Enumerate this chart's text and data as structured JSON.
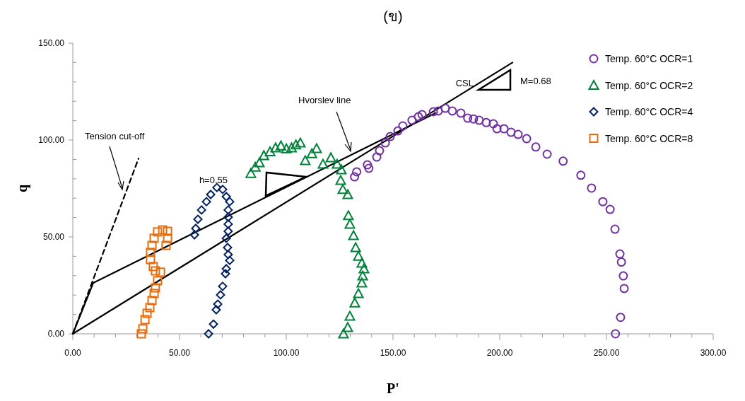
{
  "chart_data": {
    "type": "scatter",
    "title": "(ข)",
    "xlabel": "P'",
    "ylabel": "q",
    "xlim": [
      0,
      300
    ],
    "ylim": [
      0,
      150
    ],
    "xticks": [
      {
        "value": 0,
        "label": "0.00"
      },
      {
        "value": 50,
        "label": "50.00"
      },
      {
        "value": 100,
        "label": "100.00"
      },
      {
        "value": 150,
        "label": "150.00"
      },
      {
        "value": 200,
        "label": "200.00"
      },
      {
        "value": 250,
        "label": "250.00"
      },
      {
        "value": 300,
        "label": "300.00"
      },
      {
        "value": 10,
        "label": null
      },
      {
        "value": 20,
        "label": null
      },
      {
        "value": 30,
        "label": null
      },
      {
        "value": 40,
        "label": null
      },
      {
        "value": 60,
        "label": null
      },
      {
        "value": 70,
        "label": null
      },
      {
        "value": 80,
        "label": null
      },
      {
        "value": 90,
        "label": null
      },
      {
        "value": 110,
        "label": null
      },
      {
        "value": 120,
        "label": null
      },
      {
        "value": 130,
        "label": null
      },
      {
        "value": 140,
        "label": null
      },
      {
        "value": 160,
        "label": null
      },
      {
        "value": 170,
        "label": null
      },
      {
        "value": 180,
        "label": null
      },
      {
        "value": 190,
        "label": null
      },
      {
        "value": 210,
        "label": null
      },
      {
        "value": 220,
        "label": null
      },
      {
        "value": 230,
        "label": null
      },
      {
        "value": 240,
        "label": null
      },
      {
        "value": 260,
        "label": null
      },
      {
        "value": 270,
        "label": null
      },
      {
        "value": 280,
        "label": null
      },
      {
        "value": 290,
        "label": null
      }
    ],
    "yticks": [
      {
        "value": 0,
        "label": "0.00"
      },
      {
        "value": 50,
        "label": "50.00"
      },
      {
        "value": 100,
        "label": "100.00"
      },
      {
        "value": 150,
        "label": "150.00"
      },
      {
        "value": 10,
        "label": null
      },
      {
        "value": 20,
        "label": null
      },
      {
        "value": 30,
        "label": null
      },
      {
        "value": 40,
        "label": null
      },
      {
        "value": 60,
        "label": null
      },
      {
        "value": 70,
        "label": null
      },
      {
        "value": 80,
        "label": null
      },
      {
        "value": 90,
        "label": null
      },
      {
        "value": 110,
        "label": null
      },
      {
        "value": 120,
        "label": null
      },
      {
        "value": 130,
        "label": null
      },
      {
        "value": 140,
        "label": null
      }
    ],
    "grid": false,
    "legend": "top right",
    "series": [
      {
        "name": "Temp. 60°C OCR=1",
        "color": "#7030a0",
        "marker": "circle",
        "x": [
          132,
          133,
          138.7,
          138,
          142.4,
          143.7,
          146.4,
          148.7,
          152.3,
          154.6,
          158.9,
          161.9,
          163.6,
          168.9,
          171.2,
          174.5,
          177.8,
          181.8,
          185,
          187.7,
          190.4,
          193.7,
          197,
          198.7,
          202,
          205.3,
          208.6,
          212.6,
          216.9,
          222.2,
          229.7,
          238,
          243,
          248.3,
          251.7,
          254,
          256.3,
          257,
          257.9,
          258.3,
          256.6,
          254.2
        ],
        "values": [
          81,
          83.6,
          85.4,
          87.2,
          91.2,
          94.5,
          98.5,
          101.8,
          104.7,
          107.3,
          110.2,
          112,
          113.1,
          114.6,
          115,
          116.4,
          115,
          113.9,
          111.3,
          110.9,
          110.2,
          109,
          108.4,
          105.8,
          105.8,
          104,
          102.9,
          100.7,
          96.4,
          92.7,
          89.1,
          81.8,
          75.2,
          68.2,
          64.2,
          54,
          41.2,
          37,
          29.9,
          23.4,
          8.5,
          0
        ]
      },
      {
        "name": "Temp. 60°C OCR=2",
        "color": "#00823b",
        "marker": "triangle",
        "x": [
          83.4,
          85.5,
          87.4,
          89.5,
          92.4,
          95,
          97.5,
          100,
          102.5,
          104.5,
          106.6,
          108.9,
          112,
          114.2,
          117.2,
          120.9,
          123.8,
          125.8,
          125.5,
          126.5,
          128.8,
          129.1,
          129.8,
          131.5,
          132.5,
          133.8,
          135.4,
          136.4,
          135.8,
          135.4,
          133.8,
          132.1,
          129.8,
          128.8,
          126.8
        ],
        "values": [
          82.8,
          86,
          88.3,
          92,
          94,
          96,
          97,
          95.5,
          96,
          97.5,
          98.5,
          89.4,
          93,
          95.6,
          87.6,
          90.9,
          87.6,
          84.7,
          79.2,
          74.5,
          71.9,
          61,
          56.6,
          50.7,
          44.5,
          40.1,
          36.5,
          33.6,
          29.9,
          26.3,
          20.8,
          16,
          9.1,
          3.3,
          0
        ]
      },
      {
        "name": "Temp. 60°C OCR=4",
        "color": "#002060",
        "marker": "diamond",
        "x": [
          57,
          57.6,
          58.6,
          60.3,
          62.6,
          64.6,
          67.5,
          70.2,
          71.9,
          73.5,
          72.8,
          72.8,
          72.8,
          72.8,
          71.9,
          72.5,
          72.8,
          73.5,
          71.9,
          71.5,
          70.2,
          69.2,
          67.9,
          67.2,
          65.9,
          63.6
        ],
        "values": [
          51.1,
          54.4,
          59.1,
          63.9,
          68.2,
          71.9,
          75.5,
          74.5,
          70.8,
          68.2,
          63.9,
          60.2,
          56.6,
          52.9,
          49.3,
          44.5,
          40.9,
          37.9,
          33.6,
          31,
          24.5,
          20.1,
          15.3,
          12.4,
          5,
          0
        ]
      },
      {
        "name": "Temp. 60°C OCR=8",
        "color": "#e46c0a",
        "marker": "square",
        "x": [
          43.7,
          44.4,
          44.4,
          42.1,
          39.7,
          38.1,
          37.1,
          36.4,
          36.4,
          37.7,
          38.7,
          41.1,
          39.7,
          38.7,
          38.1,
          37.1,
          36.1,
          34.8,
          33.8,
          32.8,
          32.1
        ],
        "values": [
          45.6,
          49.3,
          52.9,
          53.6,
          52.6,
          49.3,
          45.6,
          42,
          38.3,
          34.7,
          32.5,
          31.8,
          27.4,
          23.7,
          20.8,
          17.2,
          13.5,
          10.6,
          7.3,
          2.6,
          0
        ]
      },
      {
        "type": "line",
        "color": "#000000",
        "marker": "none",
        "line_style": "solid",
        "x": [
          0,
          206
        ],
        "values": [
          0,
          140
        ]
      },
      {
        "type": "line",
        "color": "#000000",
        "marker": "none",
        "line_style": "solid",
        "x": [
          0,
          9.6,
          170
        ],
        "values": [
          0,
          26.3,
          114
        ]
      },
      {
        "type": "line",
        "color": "#000000",
        "marker": "none",
        "line_style": "dashed",
        "x": [
          0,
          30.8
        ],
        "values": [
          0,
          90.5
        ]
      }
    ],
    "annotations": [
      "Tension cut-off",
      "Hvorslev line",
      "CSL",
      "M=0.68",
      "h=0.55"
    ]
  }
}
